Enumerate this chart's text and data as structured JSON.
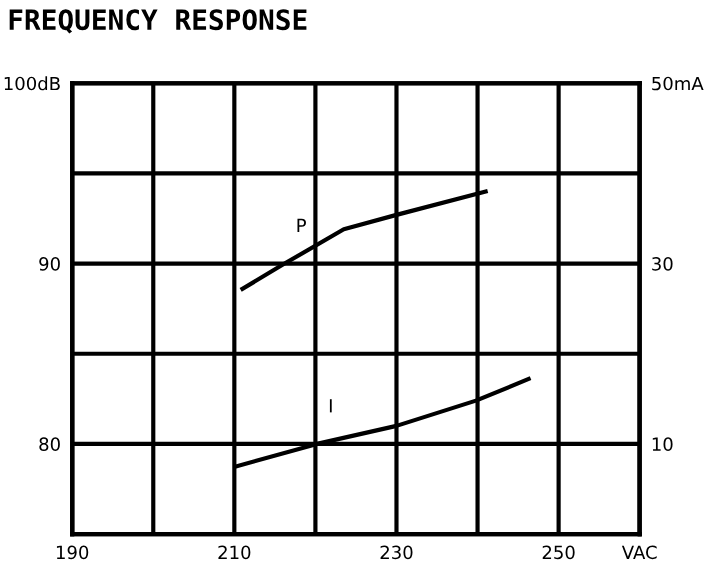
{
  "chart_data": {
    "type": "line",
    "title": "FREQUENCY RESPONSE",
    "xlim": [
      190,
      260
    ],
    "xticks": [
      190,
      {
        "value": 200,
        "label": null
      },
      210,
      {
        "value": 220,
        "label": null
      },
      230,
      {
        "value": 240,
        "label": null
      },
      250,
      {
        "value": 260,
        "label": "VAC"
      }
    ],
    "ylim": [
      75,
      100
    ],
    "yticks": [
      {
        "value": 75,
        "label": null
      },
      80,
      {
        "value": 85,
        "label": null
      },
      90,
      {
        "value": 95,
        "label": null
      },
      {
        "value": 100,
        "label": "100dB"
      }
    ],
    "y2lim": [
      0,
      50
    ],
    "y2ticks": [
      10,
      30,
      {
        "value": 50,
        "label": "50mA"
      }
    ],
    "grid": true,
    "legend": false,
    "marker": "none",
    "line_style": "solid",
    "series": [
      {
        "name": "P",
        "color": "#000000",
        "x": [
          211,
          216.2,
          223.5,
          230,
          241
        ],
        "values": [
          88.6,
          90.0,
          91.9,
          92.7,
          94.0
        ]
      },
      {
        "name": "I",
        "color": "#000000",
        "axis": "y2",
        "x": [
          210.2,
          220.2,
          230,
          239.8,
          246.3
        ],
        "values": [
          7.5,
          10.0,
          12.0,
          14.8,
          17.2
        ]
      }
    ]
  }
}
